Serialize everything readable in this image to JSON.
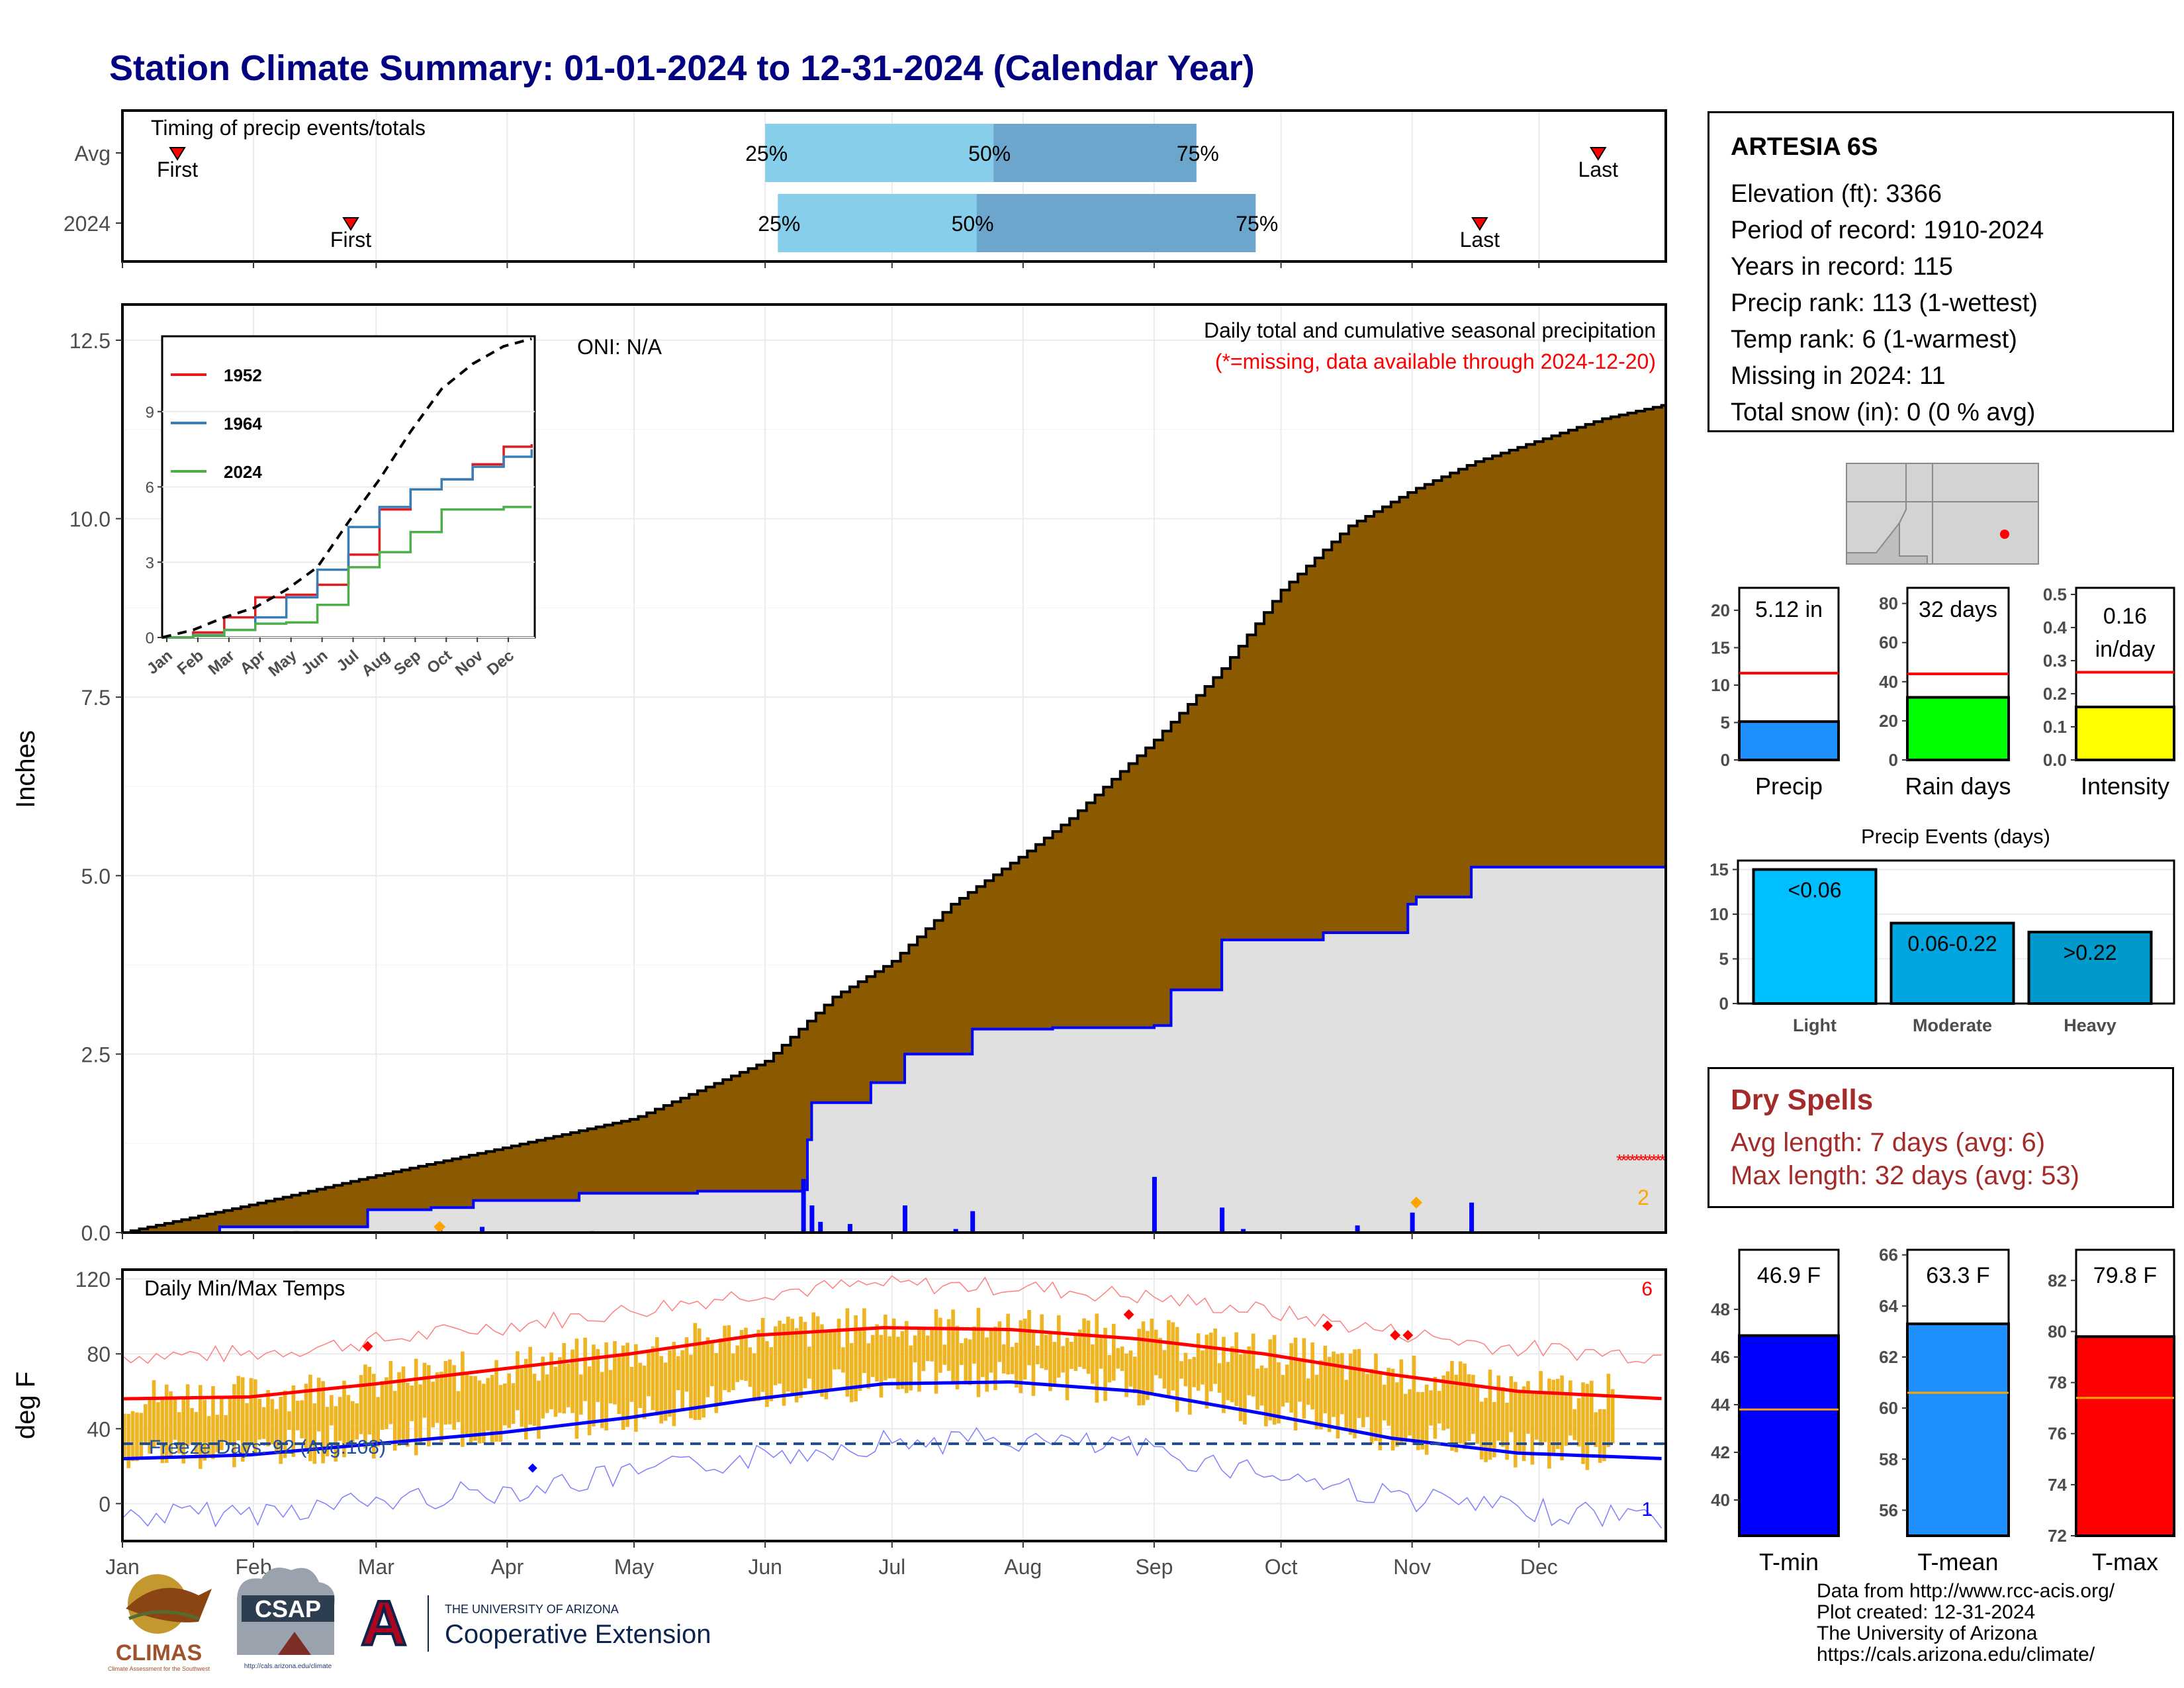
{
  "title": "Station Climate Summary: 01-01-2024 to 12-31-2024 (Calendar Year)",
  "station": {
    "name": "ARTESIA 6S",
    "lines": [
      "Elevation (ft): 3366",
      "Period of record: 1910-2024",
      "Years in record: 115",
      "Precip rank: 113 (1-wettest)",
      "Temp rank: 6 (1-warmest)",
      "Missing in 2024: 11",
      "Total snow (in): 0 (0 % avg)"
    ]
  },
  "dry_spells": {
    "title": "Dry Spells",
    "avg_length": "Avg length: 7 days (avg: 6)",
    "max_length": "Max length: 32 days (avg: 53)"
  },
  "footer": {
    "lines": [
      "Data from http://www.rcc-acis.org/",
      "Plot created: 12-31-2024",
      "The University of Arizona",
      "https://cals.arizona.edu/climate/"
    ]
  },
  "logos": {
    "climas": "CLIMAS",
    "climas_sub": "Climate Assessment for the Southwest",
    "csap": "CSAP",
    "csap_sub": "http://cals.arizona.edu/climate",
    "ua_top": "THE UNIVERSITY OF ARIZONA",
    "ua_bottom": "Cooperative Extension"
  },
  "colors": {
    "title": "#000080",
    "normal_precip": "#8B5A00",
    "observed_precip": "#E0E0E0",
    "daily_precip": "#0000FF",
    "quartile_light": "#87CEEB",
    "quartile_dark": "#6CA6CD",
    "temp_bar": "#EEB422",
    "tmax_avg": "#FF0000",
    "tmin_avg": "#0000FF"
  },
  "chart_data": [
    {
      "type": "timeline",
      "title": "Timing of precip events/totals",
      "rows": [
        {
          "name": "Avg",
          "first": "Jan 14",
          "q25": "Jun 1",
          "q50": "Jul 25",
          "q75": "Sep 11",
          "last": "Dec 15"
        },
        {
          "name": "2024",
          "first": "Feb 24",
          "q25": "Jun 4",
          "q50": "Jul 21",
          "q75": "Sep 25",
          "last": "Nov 17"
        }
      ],
      "labels": {
        "first": "First",
        "last": "Last",
        "q25": "25%",
        "q50": "50%",
        "q75": "75%"
      }
    },
    {
      "type": "area",
      "title": "Daily total and cumulative seasonal precipitation",
      "subtitle": "(*=missing, data available through 2024-12-20)",
      "ylabel": "Inches",
      "ylim": [
        0,
        13
      ],
      "yticks": [
        0.0,
        2.5,
        5.0,
        7.5,
        10.0,
        12.5
      ],
      "x_months": [
        "Jan",
        "Feb",
        "Mar",
        "Apr",
        "May",
        "Jun",
        "Jul",
        "Aug",
        "Sep",
        "Oct",
        "Nov",
        "Dec"
      ],
      "annotation": "ONI: N/A",
      "missing_count_label": "2",
      "normal_cumulative": {
        "day": [
          0,
          31,
          60,
          91,
          121,
          152,
          168,
          182,
          196,
          213,
          224,
          244,
          260,
          274,
          290,
          305,
          320,
          335,
          350,
          365
        ],
        "inches": [
          0,
          0.4,
          0.8,
          1.2,
          1.6,
          2.4,
          3.3,
          3.8,
          4.6,
          5.3,
          5.8,
          6.9,
          7.9,
          9.0,
          9.9,
          10.4,
          10.8,
          11.1,
          11.4,
          11.6
        ]
      },
      "observed_cumulative": {
        "day": [
          0,
          23,
          41,
          58,
          73,
          83,
          108,
          136,
          161,
          162,
          163,
          165,
          177,
          185,
          201,
          220,
          244,
          248,
          260,
          284,
          304,
          306,
          319,
          365
        ],
        "inches": [
          0,
          0.08,
          0.08,
          0.32,
          0.35,
          0.45,
          0.55,
          0.58,
          0.6,
          1.3,
          1.82,
          1.82,
          2.1,
          2.5,
          2.85,
          2.87,
          2.9,
          3.4,
          4.1,
          4.2,
          4.6,
          4.7,
          5.12,
          5.12
        ]
      },
      "daily_precip": {
        "day": [
          41,
          75,
          85,
          111,
          161,
          163,
          165,
          172,
          185,
          197,
          201,
          244,
          260,
          265,
          292,
          305,
          319
        ],
        "inches": [
          0.02,
          0.08,
          0.08,
          0.02,
          0.75,
          0.38,
          0.15,
          0.12,
          0.38,
          0.05,
          0.3,
          0.78,
          0.35,
          0.05,
          0.1,
          0.28,
          0.42
        ]
      }
    },
    {
      "type": "line",
      "title": "Inset cumulative precip",
      "x_months": [
        "Jan",
        "Feb",
        "Mar",
        "Apr",
        "May",
        "Jun",
        "Jul",
        "Aug",
        "Sep",
        "Oct",
        "Nov",
        "Dec"
      ],
      "yticks": [
        0,
        3,
        6,
        9
      ],
      "series": [
        {
          "name": "1952",
          "color": "#E41A1C",
          "month": [
            0,
            1,
            2,
            3,
            4,
            5,
            6,
            7,
            8,
            9,
            10,
            11,
            11.9
          ],
          "values": [
            0,
            0.2,
            0.8,
            1.6,
            1.7,
            2.1,
            3.3,
            5.1,
            5.9,
            6.3,
            6.9,
            7.6,
            7.7
          ]
        },
        {
          "name": "1964",
          "color": "#377EB8",
          "month": [
            0,
            1,
            2,
            3,
            4,
            5,
            6,
            7,
            8,
            9,
            10,
            11,
            11.9
          ],
          "values": [
            0,
            0.1,
            0.3,
            0.8,
            1.6,
            2.7,
            4.4,
            5.2,
            5.9,
            6.3,
            6.8,
            7.2,
            7.5
          ]
        },
        {
          "name": "2024",
          "color": "#4DAF4A",
          "month": [
            0,
            1,
            2,
            3,
            4,
            5,
            6,
            7,
            8,
            9,
            10,
            11,
            11.9
          ],
          "values": [
            0,
            0.08,
            0.3,
            0.55,
            0.6,
            1.3,
            2.8,
            3.4,
            4.2,
            5.1,
            5.1,
            5.2,
            5.2
          ]
        },
        {
          "name": "avg",
          "color": "#000000",
          "dash": true,
          "month": [
            0,
            1,
            2,
            3,
            4,
            5,
            6,
            7,
            8,
            9,
            10,
            11,
            11.9
          ],
          "values": [
            0,
            0.3,
            0.8,
            1.2,
            1.9,
            2.8,
            4.6,
            6.3,
            8.2,
            9.9,
            10.9,
            11.6,
            11.9
          ]
        }
      ]
    },
    {
      "type": "bar",
      "title": "Daily Min/Max Temps",
      "ylabel": "deg F",
      "ylim": [
        -20,
        125
      ],
      "yticks": [
        0,
        40,
        80,
        120
      ],
      "record_high_count": "6",
      "record_low_count": "1",
      "freeze_days": "Freeze Days: 92 (Avg:108)",
      "freeze_line": 32,
      "avg_tmax": {
        "day": [
          0,
          30,
          60,
          90,
          120,
          150,
          180,
          210,
          240,
          270,
          300,
          330,
          365
        ],
        "values": [
          56,
          57,
          64,
          72,
          80,
          90,
          94,
          93,
          88,
          80,
          69,
          60,
          56
        ]
      },
      "avg_tmin": {
        "day": [
          0,
          30,
          60,
          90,
          120,
          150,
          180,
          210,
          240,
          270,
          300,
          330,
          365
        ],
        "values": [
          24,
          26,
          32,
          38,
          46,
          56,
          64,
          65,
          60,
          48,
          35,
          27,
          24
        ]
      }
    },
    {
      "type": "bar",
      "title": "Precip",
      "categories": [
        "Precip"
      ],
      "values": [
        5.12
      ],
      "value_label": "5.12 in",
      "average": 11.6,
      "ylim": [
        0,
        23
      ],
      "yticks": [
        0,
        5,
        10,
        15,
        20
      ],
      "color": "#1E90FF"
    },
    {
      "type": "bar",
      "title": "Rain days",
      "categories": [
        "Rain days"
      ],
      "values": [
        32
      ],
      "value_label": "32 days",
      "average": 44,
      "ylim": [
        0,
        88
      ],
      "yticks": [
        0,
        20,
        40,
        60,
        80
      ],
      "color": "#00FF00"
    },
    {
      "type": "bar",
      "title": "Intensity",
      "categories": [
        "Intensity"
      ],
      "values": [
        0.16
      ],
      "value_label": "0.16\nin/day",
      "average": 0.265,
      "ylim": [
        0,
        0.52
      ],
      "yticks": [
        0.0,
        0.1,
        0.2,
        0.3,
        0.4,
        0.5
      ],
      "color": "#FFFF00"
    },
    {
      "type": "bar",
      "title": "Precip Events (days)",
      "categories": [
        "Light",
        "Moderate",
        "Heavy"
      ],
      "bar_labels": [
        "<0.06",
        "0.06-0.22",
        ">0.22"
      ],
      "values": [
        15,
        9,
        8
      ],
      "ylim": [
        0,
        16
      ],
      "yticks": [
        0,
        5,
        10,
        15
      ],
      "colors": [
        "#00BFFF",
        "#00A6E0",
        "#0099CC"
      ]
    },
    {
      "type": "bar",
      "title": "T-min",
      "categories": [
        "T-min"
      ],
      "values": [
        46.9
      ],
      "value_label": "46.9 F",
      "average": 43.8,
      "ylim": [
        38.5,
        50.5
      ],
      "yticks": [
        40,
        42,
        44,
        46,
        48
      ],
      "color": "#0000FF"
    },
    {
      "type": "bar",
      "title": "T-mean",
      "categories": [
        "T-mean"
      ],
      "values": [
        63.3
      ],
      "value_label": "63.3 F",
      "average": 60.6,
      "ylim": [
        55,
        66.2
      ],
      "yticks": [
        56,
        58,
        60,
        62,
        64,
        66
      ],
      "color": "#1E90FF"
    },
    {
      "type": "bar",
      "title": "T-max",
      "categories": [
        "T-max"
      ],
      "values": [
        79.8
      ],
      "value_label": "79.8 F",
      "average": 77.4,
      "ylim": [
        72,
        83.2
      ],
      "yticks": [
        72,
        74,
        76,
        78,
        80,
        82
      ],
      "color": "#FF0000"
    }
  ]
}
